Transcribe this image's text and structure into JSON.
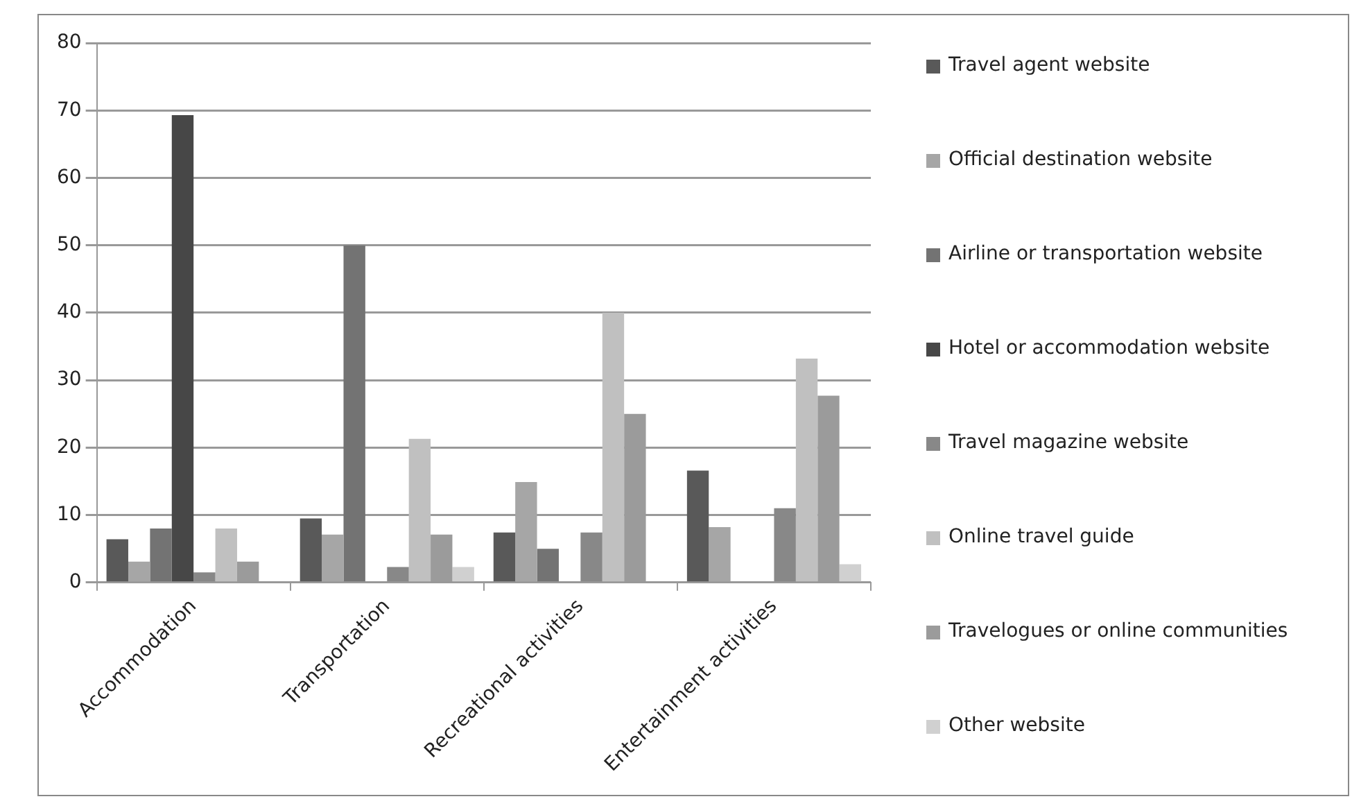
{
  "chart_data": {
    "type": "bar",
    "categories": [
      "Accommodation",
      "Transportation",
      "Recreational activities",
      "Entertainment activities"
    ],
    "series": [
      {
        "name": "Travel agent website",
        "color": "#595959",
        "values": [
          6.4,
          9.5,
          7.4,
          16.6
        ]
      },
      {
        "name": "Official destination website",
        "color": "#a6a6a6",
        "values": [
          3.1,
          7.1,
          14.9,
          8.2
        ]
      },
      {
        "name": "Airline or transportation website",
        "color": "#737373",
        "values": [
          8.0,
          50.0,
          5.0,
          0
        ]
      },
      {
        "name": "Hotel or accommodation website",
        "color": "#474747",
        "values": [
          69.3,
          0,
          0,
          0
        ]
      },
      {
        "name": "Travel magazine website",
        "color": "#888888",
        "values": [
          1.5,
          2.3,
          7.4,
          11.0
        ]
      },
      {
        "name": "Online travel guide",
        "color": "#c0c0c0",
        "values": [
          8.0,
          21.3,
          40.0,
          33.2
        ]
      },
      {
        "name": "Travelogues or online communities",
        "color": "#9b9b9b",
        "values": [
          3.1,
          7.1,
          25.0,
          27.7
        ]
      },
      {
        "name": "Other website",
        "color": "#d0d0d0",
        "values": [
          0,
          2.3,
          0,
          2.7
        ]
      }
    ],
    "ylim": [
      0,
      80
    ],
    "yticks": [
      0,
      10,
      20,
      30,
      40,
      50,
      60,
      70,
      80
    ],
    "grid": "y",
    "legend": "right"
  }
}
